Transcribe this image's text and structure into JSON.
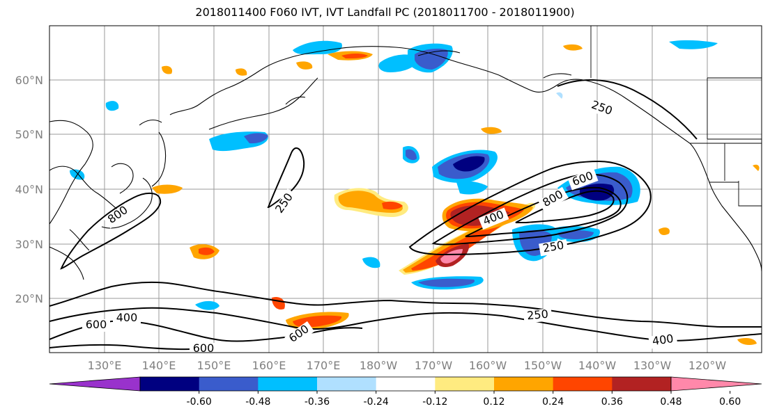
{
  "title": "2018011400 F060 IVT, IVT Landfall PC (2018011700 - 2018011900)",
  "map": {
    "lat_labels": [
      "60°N",
      "50°N",
      "40°N",
      "30°N",
      "20°N"
    ],
    "lon_labels": [
      "130°E",
      "140°E",
      "150°E",
      "160°E",
      "170°E",
      "180°W",
      "170°W",
      "160°W",
      "150°W",
      "140°W",
      "130°W",
      "120°W"
    ],
    "contour_labels": [
      "250",
      "250",
      "250",
      "250",
      "400",
      "400",
      "400",
      "600",
      "600",
      "600",
      "600",
      "800",
      "800"
    ]
  },
  "colorbar": {
    "colors": [
      "#9932cc",
      "#000080",
      "#3a5ccc",
      "#00bfff",
      "#b0e0ff",
      "#ffffff",
      "#ffeb80",
      "#ffa500",
      "#ff4500",
      "#b22222",
      "#ff88aa"
    ],
    "tick_labels": [
      "-0.60",
      "-0.48",
      "-0.36",
      "-0.24",
      "-0.12",
      "0.12",
      "0.24",
      "0.36",
      "0.48",
      "0.60"
    ]
  }
}
